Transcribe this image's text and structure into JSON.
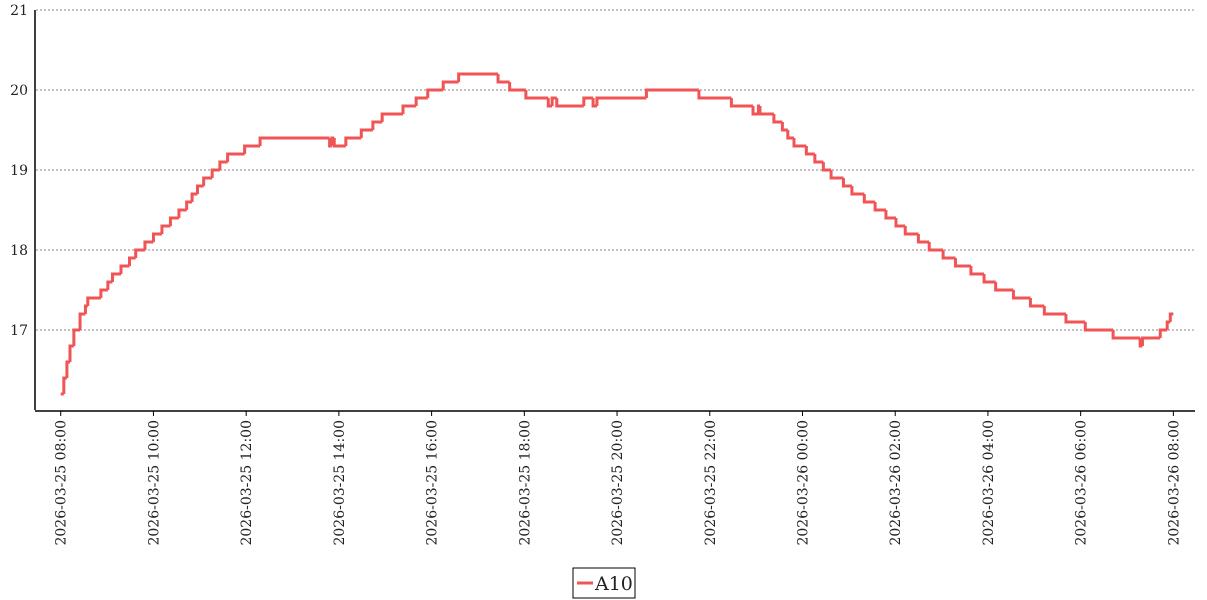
{
  "chart_data": {
    "type": "line",
    "drawstyle": "steps-post",
    "xlim": [
      "2026-03-25 07:28",
      "2026-03-26 08:28"
    ],
    "xticks": [
      "2026-03-25 08:00",
      "2026-03-25 10:00",
      "2026-03-25 12:00",
      "2026-03-25 14:00",
      "2026-03-25 16:00",
      "2026-03-25 18:00",
      "2026-03-25 20:00",
      "2026-03-25 22:00",
      "2026-03-26 00:00",
      "2026-03-26 02:00",
      "2026-03-26 04:00",
      "2026-03-26 06:00",
      "2026-03-26 08:00"
    ],
    "ylim": [
      16,
      21
    ],
    "yticks": [
      17,
      18,
      19,
      20,
      21
    ],
    "grid": true,
    "x": [
      "2026-03-25 08:00",
      "2026-03-25 08:04",
      "2026-03-25 08:08",
      "2026-03-25 08:12",
      "2026-03-25 08:17",
      "2026-03-25 08:25",
      "2026-03-25 08:32",
      "2026-03-25 08:35",
      "2026-03-25 08:52",
      "2026-03-25 09:01",
      "2026-03-25 09:07",
      "2026-03-25 09:18",
      "2026-03-25 09:29",
      "2026-03-25 09:37",
      "2026-03-25 09:49",
      "2026-03-25 10:00",
      "2026-03-25 10:11",
      "2026-03-25 10:22",
      "2026-03-25 10:33",
      "2026-03-25 10:43",
      "2026-03-25 10:50",
      "2026-03-25 10:57",
      "2026-03-25 11:05",
      "2026-03-25 11:16",
      "2026-03-25 11:26",
      "2026-03-25 11:36",
      "2026-03-25 11:58",
      "2026-03-25 12:18",
      "2026-03-25 13:48",
      "2026-03-25 13:51",
      "2026-03-25 13:54",
      "2026-03-25 14:09",
      "2026-03-25 14:29",
      "2026-03-25 14:44",
      "2026-03-25 14:56",
      "2026-03-25 15:23",
      "2026-03-25 15:40",
      "2026-03-25 15:55",
      "2026-03-25 16:15",
      "2026-03-25 16:35",
      "2026-03-25 17:26",
      "2026-03-25 17:41",
      "2026-03-25 18:02",
      "2026-03-25 18:31",
      "2026-03-25 18:36",
      "2026-03-25 18:42",
      "2026-03-25 19:17",
      "2026-03-25 19:29",
      "2026-03-25 19:34",
      "2026-03-25 20:38",
      "2026-03-25 21:46",
      "2026-03-25 22:28",
      "2026-03-25 22:56",
      "2026-03-25 23:03",
      "2026-03-25 23:05",
      "2026-03-25 23:23",
      "2026-03-25 23:34",
      "2026-03-25 23:41",
      "2026-03-25 23:49",
      "2026-03-26 00:05",
      "2026-03-26 00:16",
      "2026-03-26 00:27",
      "2026-03-26 00:37",
      "2026-03-26 00:53",
      "2026-03-26 01:04",
      "2026-03-26 01:20",
      "2026-03-26 01:34",
      "2026-03-26 01:48",
      "2026-03-26 02:01",
      "2026-03-26 02:13",
      "2026-03-26 02:30",
      "2026-03-26 02:44",
      "2026-03-26 03:02",
      "2026-03-26 03:18",
      "2026-03-26 03:38",
      "2026-03-26 03:55",
      "2026-03-26 04:10",
      "2026-03-26 04:33",
      "2026-03-26 04:55",
      "2026-03-26 05:13",
      "2026-03-26 05:41",
      "2026-03-26 06:06",
      "2026-03-26 06:42",
      "2026-03-26 07:17",
      "2026-03-26 07:20",
      "2026-03-26 07:43",
      "2026-03-26 07:52",
      "2026-03-26 07:56",
      "2026-03-26 08:00"
    ],
    "series": [
      {
        "name": "A10",
        "color": "#f05454",
        "values": [
          16.2,
          16.4,
          16.6,
          16.8,
          17.0,
          17.2,
          17.3,
          17.4,
          17.5,
          17.6,
          17.7,
          17.8,
          17.9,
          18.0,
          18.1,
          18.2,
          18.3,
          18.4,
          18.5,
          18.6,
          18.7,
          18.8,
          18.9,
          19.0,
          19.1,
          19.2,
          19.3,
          19.4,
          19.3,
          19.4,
          19.3,
          19.4,
          19.5,
          19.6,
          19.7,
          19.8,
          19.9,
          20.0,
          20.1,
          20.2,
          20.1,
          20.0,
          19.9,
          19.8,
          19.9,
          19.8,
          19.9,
          19.8,
          19.9,
          20.0,
          19.9,
          19.8,
          19.7,
          19.8,
          19.7,
          19.6,
          19.5,
          19.4,
          19.3,
          19.2,
          19.1,
          19.0,
          18.9,
          18.8,
          18.7,
          18.6,
          18.5,
          18.4,
          18.3,
          18.2,
          18.1,
          18.0,
          17.9,
          17.8,
          17.7,
          17.6,
          17.5,
          17.4,
          17.3,
          17.2,
          17.1,
          17.0,
          16.9,
          16.8,
          16.9,
          17.0,
          17.1,
          17.2,
          17.2
        ]
      }
    ]
  }
}
